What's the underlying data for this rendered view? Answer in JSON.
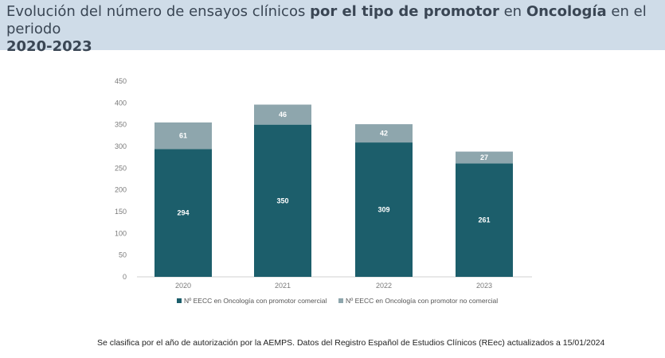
{
  "header": {
    "title_part1": "Evolución del número de ensayos clínicos ",
    "title_bold1": "por el tipo de promotor",
    "title_part2": " en ",
    "title_bold2": "Oncología",
    "title_part3": " en el periodo",
    "title_bold3": "2020-2023"
  },
  "footnote": "Se clasifica por el año de autorización por la AEMPS. Datos del Registro Español de Estudios Clínicos (REec) actualizados a 15/01/2024",
  "colors": {
    "commercial": "#1c5e6b",
    "non_commercial": "#8ea6ad",
    "header_bg": "#cfdce8"
  },
  "chart_data": {
    "type": "bar",
    "stacked": true,
    "categories": [
      "2020",
      "2021",
      "2022",
      "2023"
    ],
    "series": [
      {
        "name": "Nº EECC en Oncología con promotor comercial",
        "values": [
          294,
          350,
          309,
          261
        ]
      },
      {
        "name": "Nº EECC en Oncología con promotor no comercial",
        "values": [
          61,
          46,
          42,
          27
        ]
      }
    ],
    "yticks": [
      "0",
      "50",
      "100",
      "150",
      "200",
      "250",
      "300",
      "350",
      "400",
      "450"
    ],
    "ylim": [
      0,
      450
    ],
    "grid": false,
    "legend": "bottom"
  }
}
